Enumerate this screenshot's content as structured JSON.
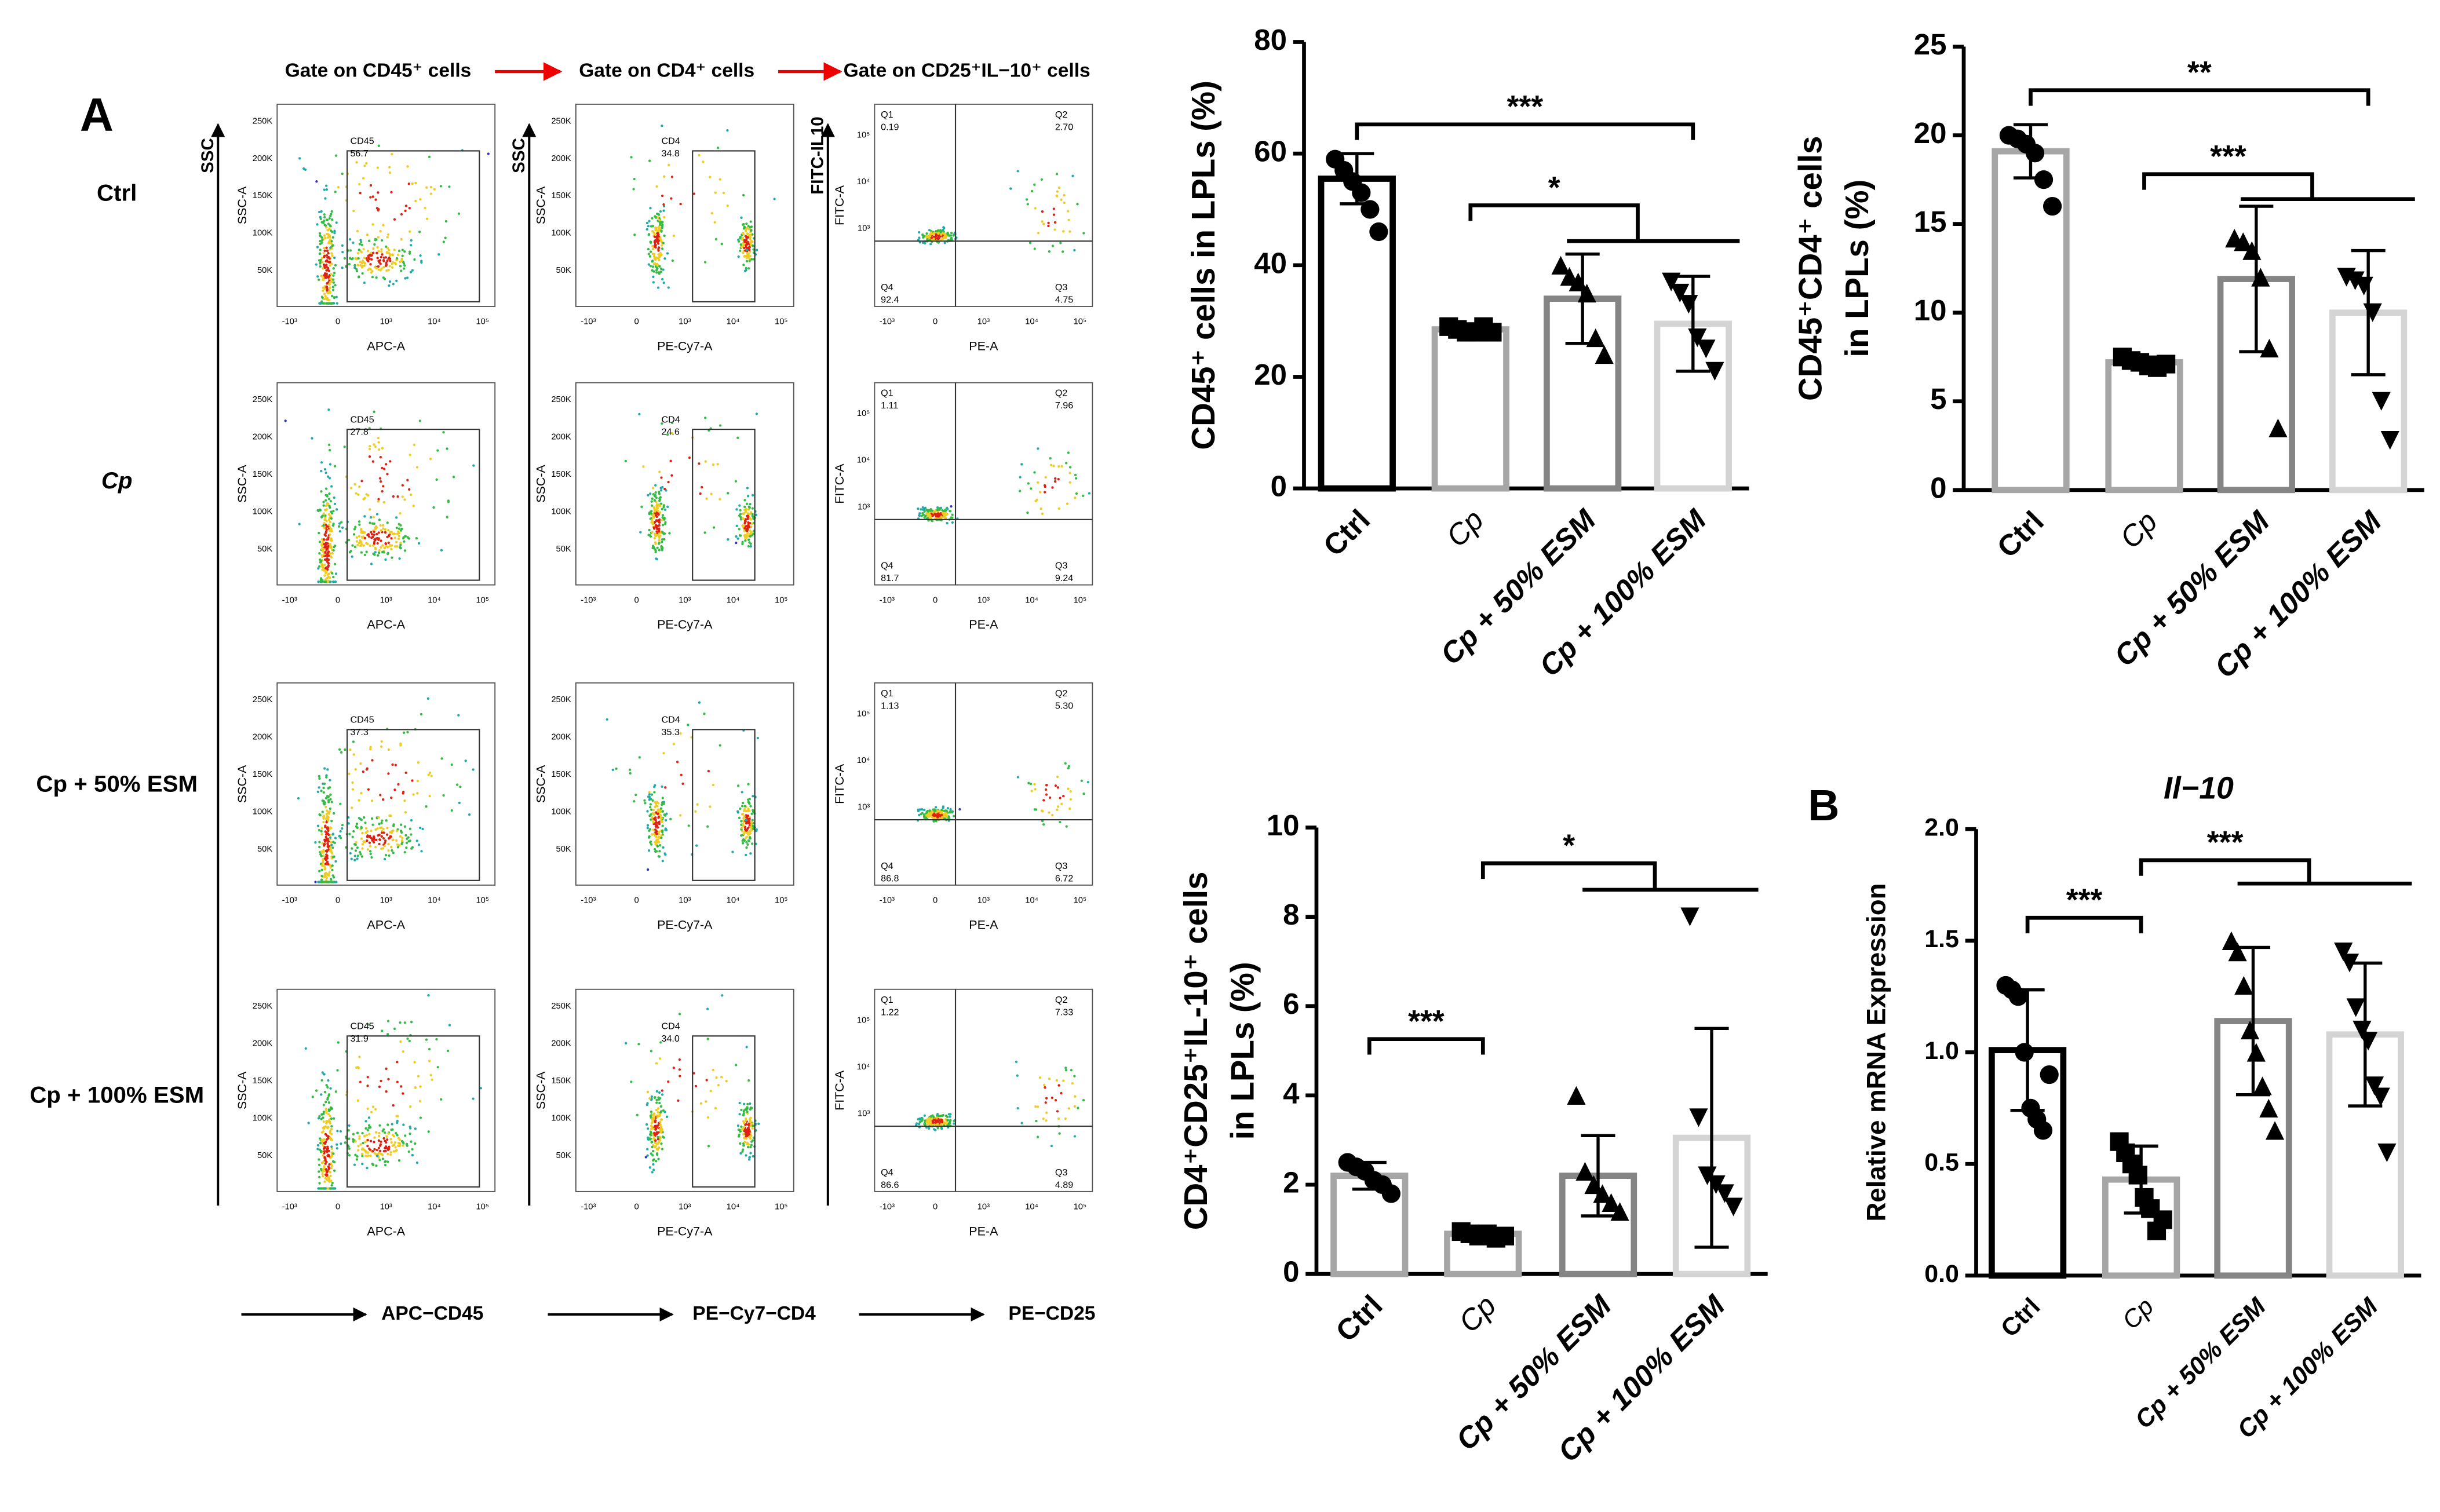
{
  "flow": {
    "panel_label": "A",
    "gates": [
      "Gate on CD45⁺ cells",
      "Gate on CD4⁺ cells",
      "Gate on CD25⁺IL−10⁺ cells"
    ],
    "rows": [
      "Ctrl",
      "Cp",
      "Cp + 50% ESM",
      "Cp + 100% ESM"
    ],
    "side_labels": [
      "SSC",
      "SSC",
      "FITC-IL10"
    ],
    "bottom_labels": [
      "APC−CD45",
      "PE−Cy7−CD4",
      "PE−CD25"
    ],
    "panel_xlabels": [
      "APC-A",
      "PE-Cy7-A",
      "PE-A"
    ],
    "panel_ylabels": [
      "SSC-A",
      "SSC-A",
      "FITC-A"
    ],
    "gate_names": [
      "CD45",
      "CD4"
    ],
    "lin_ticks": [
      "50K",
      "100K",
      "150K",
      "200K",
      "250K"
    ],
    "log_ticks": [
      "-10³",
      "0",
      "10³",
      "10⁴",
      "10⁵"
    ],
    "fitc_ticks": [
      "10³",
      "10⁴",
      "10⁵"
    ],
    "cd45": [
      "56.7",
      "27.8",
      "37.3",
      "31.9"
    ],
    "cd4": [
      "34.8",
      "24.6",
      "35.3",
      "34.0"
    ],
    "quadrant_names": [
      "Q1",
      "Q2",
      "Q3",
      "Q4"
    ],
    "quadrants": [
      [
        "0.19",
        "2.70",
        "4.75",
        "92.4"
      ],
      [
        "1.11",
        "7.96",
        "9.24",
        "81.7"
      ],
      [
        "1.13",
        "5.30",
        "6.72",
        "86.8"
      ],
      [
        "1.22",
        "7.33",
        "4.89",
        "86.6"
      ]
    ]
  },
  "chart_data": [
    {
      "type": "bar",
      "ylabel": [
        "CD45⁺ cells in LPLs (%)"
      ],
      "categories": [
        "Ctrl",
        "Cp",
        "Cp + 50% ESM",
        "Cp + 100% ESM"
      ],
      "values": [
        55.5,
        28.5,
        34,
        29.5
      ],
      "errors": [
        4.5,
        1,
        8,
        8.5
      ],
      "points": [
        [
          59,
          57,
          55,
          53,
          50,
          46
        ],
        [
          29,
          28.5,
          28,
          28,
          29,
          28
        ],
        [
          40,
          38,
          37,
          35,
          27,
          24
        ],
        [
          37,
          35,
          33,
          27,
          25,
          21
        ]
      ],
      "colors": [
        "#000000",
        "#a6a6a6",
        "#858585",
        "#d4d4d4"
      ],
      "ylim": [
        0,
        80
      ],
      "yticks": [
        0,
        20,
        40,
        60,
        80
      ],
      "annotations": [
        "***",
        "*"
      ]
    },
    {
      "type": "bar",
      "ylabel": [
        "CD45⁺CD4⁺ cells",
        "in LPLs (%)"
      ],
      "categories": [
        "Ctrl",
        "Cp",
        "Cp + 50% ESM",
        "Cp + 100% ESM"
      ],
      "values": [
        19.1,
        7.2,
        11.9,
        10
      ],
      "errors": [
        1.5,
        0.3,
        4.1,
        3.5
      ],
      "points": [
        [
          20,
          19.8,
          19.5,
          19,
          17.5,
          16
        ],
        [
          7.5,
          7.3,
          7.2,
          7,
          6.9,
          7.1
        ],
        [
          14.2,
          14,
          13.5,
          12,
          8,
          3.5
        ],
        [
          12,
          11.8,
          11.5,
          10,
          5,
          2.8
        ]
      ],
      "colors": [
        "#a6a6a6",
        "#a6a6a6",
        "#858585",
        "#d4d4d4"
      ],
      "ylim": [
        0,
        25
      ],
      "yticks": [
        0,
        5,
        10,
        15,
        20,
        25
      ],
      "annotations": [
        "**",
        "***"
      ]
    },
    {
      "type": "bar",
      "ylabel": [
        "CD4⁺CD25⁺IL-10⁺ cells",
        "in LPLs (%)"
      ],
      "categories": [
        "Ctrl",
        "Cp",
        "Cp + 50% ESM",
        "Cp + 100% ESM"
      ],
      "values": [
        2.2,
        0.9,
        2.2,
        3.05
      ],
      "errors": [
        0.3,
        0.1,
        0.9,
        2.45
      ],
      "points": [
        [
          2.5,
          2.4,
          2.3,
          2.1,
          2.0,
          1.8
        ],
        [
          0.95,
          0.9,
          0.85,
          0.9,
          0.8,
          0.85
        ],
        [
          4.0,
          2.3,
          2.0,
          1.8,
          1.6,
          1.4
        ],
        [
          8,
          3.5,
          2.2,
          2,
          1.8,
          1.5
        ]
      ],
      "colors": [
        "#a6a6a6",
        "#a6a6a6",
        "#858585",
        "#d4d4d4"
      ],
      "ylim": [
        0,
        10
      ],
      "yticks": [
        0,
        2,
        4,
        6,
        8,
        10
      ],
      "annotations": [
        "***",
        "*"
      ]
    },
    {
      "type": "bar",
      "panel_label": "B",
      "title": "Il−10",
      "ylabel": [
        "Relative mRNA Expression"
      ],
      "categories": [
        "Ctrl",
        "Cp",
        "Cp + 50% ESM",
        "Cp + 100% ESM"
      ],
      "values": [
        1.01,
        0.43,
        1.14,
        1.08
      ],
      "errors": [
        0.27,
        0.15,
        0.33,
        0.32
      ],
      "points": [
        [
          1.3,
          1.28,
          1.25,
          1.0,
          0.75,
          0.7,
          0.65,
          0.9
        ],
        [
          0.6,
          0.55,
          0.5,
          0.45,
          0.35,
          0.3,
          0.2,
          0.25
        ],
        [
          1.5,
          1.45,
          1.3,
          1.1,
          1.0,
          0.85,
          0.75,
          0.65
        ],
        [
          1.45,
          1.4,
          1.2,
          1.1,
          1.05,
          0.85,
          0.8,
          0.55
        ]
      ],
      "colors": [
        "#000000",
        "#a6a6a6",
        "#858585",
        "#d4d4d4"
      ],
      "ylim": [
        0,
        2
      ],
      "yticks": [
        {
          "value": 0,
          "label": "0.0"
        },
        {
          "value": 0.5,
          "label": "0.5"
        },
        {
          "value": 1,
          "label": "1.0"
        },
        {
          "value": 1.5,
          "label": "1.5"
        },
        {
          "value": 2,
          "label": "2.0"
        }
      ],
      "annotations": [
        "***",
        "***"
      ]
    }
  ]
}
